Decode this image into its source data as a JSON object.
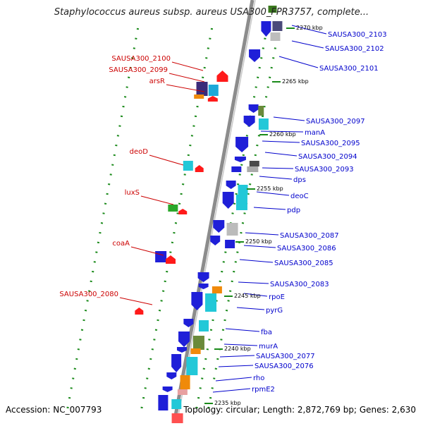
{
  "title": "Staphylococcus aureus subsp. aureus USA300_FPR3757, complete...",
  "accession": "Accession: NC_007793",
  "topology": "Topology: circular; Length: 2,872,769 bp; Genes: 2,630",
  "colors": {
    "backbone": "#8c8c8c",
    "strand_forward": "#0000ff",
    "strand_reverse": "#ff0000",
    "right_label": "#0000cc",
    "left_label": "#cc0000",
    "dots": "#1a8a1a"
  },
  "ruler_ticks": [
    "2270 kbp",
    "2265 kbp",
    "2260 kbp",
    "2255 kbp",
    "2250 kbp",
    "2245 kbp",
    "2240 kbp",
    "2235 kbp"
  ],
  "left_labels": [
    "SAUSA300_2100",
    "SAUSA300_2099",
    "arsR",
    "deoD",
    "luxS",
    "coaA",
    "SAUSA300_2080"
  ],
  "right_labels": [
    "SAUSA300_2103",
    "SAUSA300_2102",
    "SAUSA300_2101",
    "SAUSA300_2097",
    "manA",
    "SAUSA300_2095",
    "SAUSA300_2094",
    "SAUSA300_2093",
    "dps",
    "deoC",
    "pdp",
    "SAUSA300_2087",
    "SAUSA300_2086",
    "SAUSA300_2085",
    "SAUSA300_2083",
    "rpoE",
    "pyrG",
    "fba",
    "murA",
    "SAUSA300_2077",
    "SAUSA300_2076",
    "rho",
    "rpmE2"
  ]
}
